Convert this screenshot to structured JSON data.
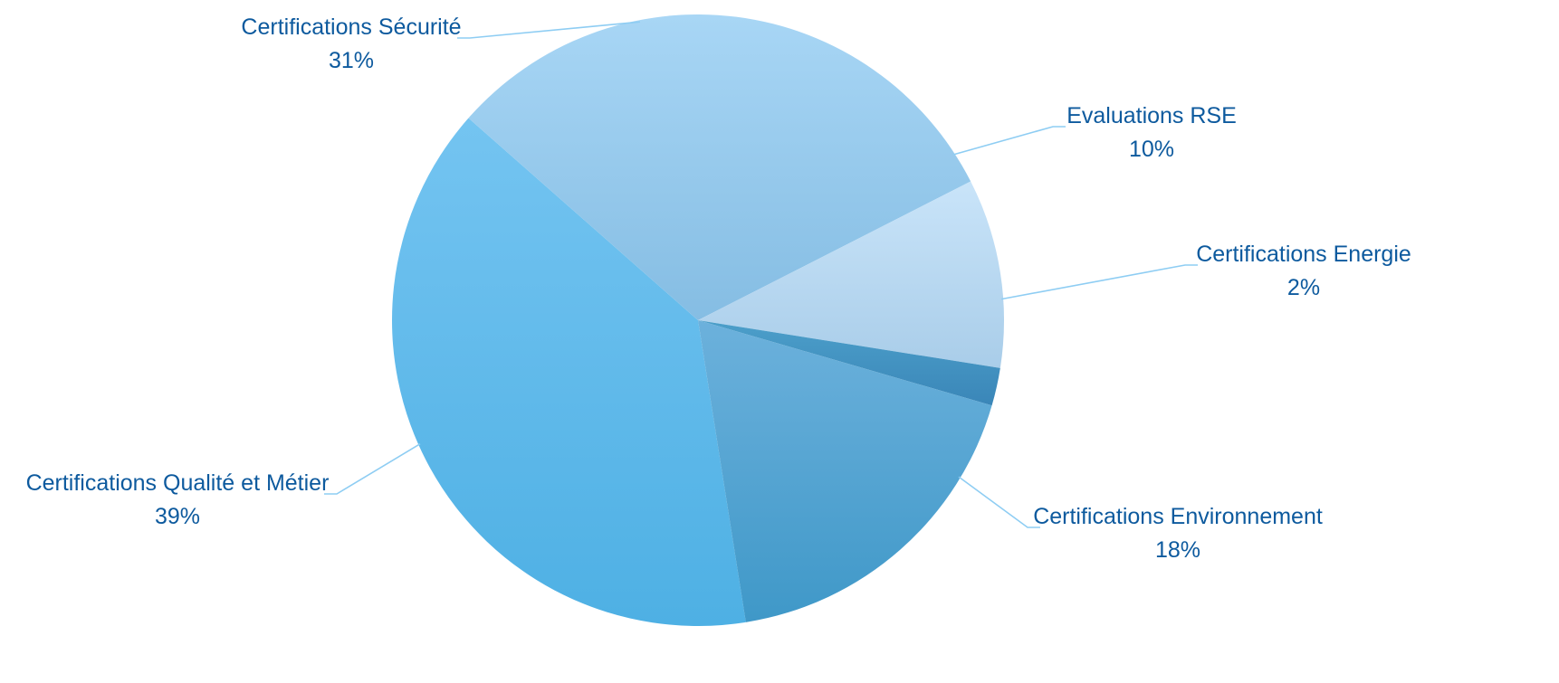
{
  "chart_data": {
    "type": "pie",
    "title": "",
    "unit": "%",
    "slices": [
      {
        "name": "Certifications Qualité et Métier",
        "value": 39,
        "label": "39%",
        "color_top": "#74c4f1",
        "color_bottom": "#4eb0e4"
      },
      {
        "name": "Certifications Sécurité",
        "value": 31,
        "label": "31%",
        "color_top": "#a8d6f5",
        "color_bottom": "#85bde3"
      },
      {
        "name": "Evaluations RSE",
        "value": 10,
        "label": "10%",
        "color_top": "#c9e4f9",
        "color_bottom": "#a9cde9"
      },
      {
        "name": "Certifications Energie",
        "value": 2,
        "label": "2%",
        "color_top": "#4c9fca",
        "color_bottom": "#3a86b8"
      },
      {
        "name": "Certifications Environnement",
        "value": 18,
        "label": "18%",
        "color_top": "#6cb1dc",
        "color_bottom": "#3f98c8"
      }
    ],
    "legend": "none",
    "label_color": "#0d5a9e",
    "leader_color": "#8ecdf3"
  }
}
